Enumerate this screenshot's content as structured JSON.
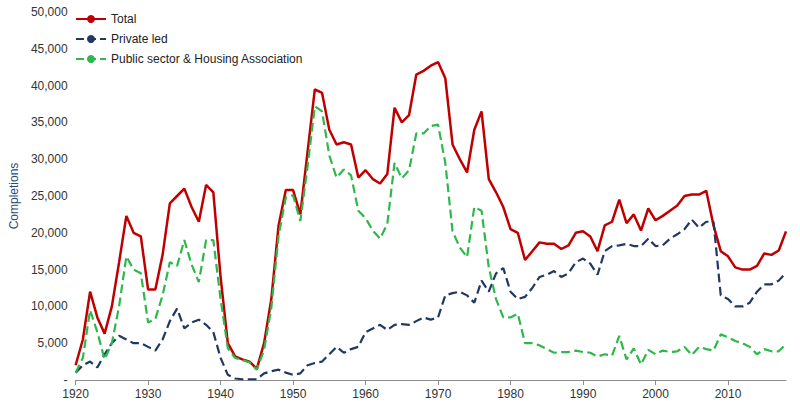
{
  "chart_data": {
    "type": "line",
    "y_label": "Completions",
    "x": [
      1920,
      1921,
      1922,
      1923,
      1924,
      1925,
      1926,
      1927,
      1928,
      1929,
      1930,
      1931,
      1932,
      1933,
      1934,
      1935,
      1936,
      1937,
      1938,
      1939,
      1940,
      1941,
      1942,
      1943,
      1944,
      1945,
      1946,
      1947,
      1948,
      1949,
      1950,
      1951,
      1952,
      1953,
      1954,
      1955,
      1956,
      1957,
      1958,
      1959,
      1960,
      1961,
      1962,
      1963,
      1964,
      1965,
      1966,
      1967,
      1968,
      1969,
      1970,
      1971,
      1972,
      1973,
      1974,
      1975,
      1976,
      1977,
      1978,
      1979,
      1980,
      1981,
      1982,
      1983,
      1984,
      1985,
      1986,
      1987,
      1988,
      1989,
      1990,
      1991,
      1992,
      1993,
      1994,
      1995,
      1996,
      1997,
      1998,
      1999,
      2000,
      2001,
      2002,
      2003,
      2004,
      2005,
      2006,
      2007,
      2008,
      2009,
      2010,
      2011,
      2012,
      2013,
      2014,
      2015,
      2016,
      2017,
      2018
    ],
    "series": [
      {
        "name": "Total",
        "color": "#c00000",
        "line_style": "solid",
        "values": [
          2000,
          5500,
          12000,
          8500,
          6300,
          10000,
          16000,
          22300,
          20000,
          19500,
          12300,
          12300,
          17000,
          24000,
          25000,
          26000,
          23500,
          21500,
          26500,
          25500,
          14000,
          5000,
          3200,
          2800,
          2500,
          1500,
          5000,
          11000,
          21000,
          25800,
          25800,
          22500,
          31000,
          39500,
          39000,
          34000,
          32000,
          32300,
          32000,
          27500,
          28500,
          27300,
          26700,
          28000,
          37000,
          35000,
          36000,
          41500,
          42000,
          42700,
          43200,
          41000,
          32000,
          30000,
          28200,
          34000,
          36500,
          27300,
          25500,
          23500,
          20500,
          20000,
          16300,
          17500,
          18700,
          18500,
          18500,
          17800,
          18300,
          20000,
          20200,
          19500,
          17500,
          21000,
          21500,
          24500,
          21300,
          22500,
          20300,
          23300,
          21700,
          22300,
          23000,
          23700,
          25000,
          25200,
          25200,
          25700,
          21000,
          17500,
          16800,
          15300,
          15000,
          15000,
          15500,
          17200,
          17000,
          17600,
          20200
        ]
      },
      {
        "name": "Private led",
        "color": "#1f3864",
        "line_style": "dashed",
        "values": [
          1000,
          2000,
          2500,
          1700,
          3500,
          5000,
          6000,
          5500,
          5000,
          5000,
          4500,
          4000,
          5500,
          8000,
          9700,
          7000,
          7800,
          8200,
          7500,
          6500,
          3000,
          700,
          200,
          100,
          100,
          100,
          900,
          1200,
          1400,
          1000,
          700,
          900,
          2000,
          2300,
          2500,
          3500,
          4500,
          3700,
          4200,
          4500,
          6500,
          7000,
          7500,
          6800,
          7500,
          7600,
          7500,
          8000,
          8500,
          8200,
          8500,
          11500,
          11800,
          12000,
          11500,
          10500,
          13500,
          12000,
          14500,
          15200,
          12000,
          11000,
          11300,
          12500,
          14000,
          14300,
          14800,
          14000,
          14500,
          16000,
          16500,
          15800,
          14300,
          17500,
          18200,
          18300,
          18500,
          18200,
          18200,
          19200,
          18200,
          18300,
          19200,
          19800,
          20500,
          21800,
          20700,
          21500,
          21500,
          11500,
          11000,
          10000,
          10000,
          10500,
          12000,
          13000,
          13000,
          13500,
          14600
        ]
      },
      {
        "name": "Public sector & Housing Association",
        "color": "#2db84b",
        "line_style": "dashed",
        "values": [
          1000,
          3000,
          9500,
          6500,
          2800,
          5000,
          10000,
          16800,
          15000,
          14500,
          7800,
          8300,
          11500,
          16000,
          15500,
          19000,
          15700,
          13300,
          19000,
          19000,
          11000,
          4300,
          3000,
          2700,
          2400,
          1400,
          4100,
          9800,
          19600,
          24800,
          25100,
          21600,
          29000,
          37200,
          36500,
          30500,
          27500,
          28600,
          27800,
          23000,
          22000,
          20300,
          19200,
          21200,
          29500,
          27400,
          28500,
          33500,
          33500,
          34500,
          34700,
          29500,
          20200,
          18000,
          16700,
          23500,
          23000,
          15300,
          11000,
          8500,
          8500,
          9000,
          5000,
          5000,
          4700,
          4200,
          3700,
          3800,
          3800,
          4000,
          3800,
          3700,
          3200,
          3500,
          3300,
          6000,
          2800,
          4300,
          2100,
          4100,
          3500,
          4000,
          3800,
          3900,
          4500,
          3400,
          4500,
          4200,
          4000,
          6200,
          5800,
          5300,
          5000,
          4500,
          3500,
          4200,
          3900,
          3900,
          4900
        ]
      }
    ],
    "xlim": [
      1920,
      2018
    ],
    "xticks": [
      1920,
      1930,
      1940,
      1950,
      1960,
      1970,
      1980,
      1990,
      2000,
      2010
    ],
    "ylim": [
      0,
      50000
    ],
    "yticks": [
      {
        "value": 0,
        "label": "-"
      },
      {
        "value": 5000,
        "label": "5,000"
      },
      {
        "value": 10000,
        "label": "10,000"
      },
      {
        "value": 15000,
        "label": "15,000"
      },
      {
        "value": 20000,
        "label": "20,000"
      },
      {
        "value": 25000,
        "label": "25,000"
      },
      {
        "value": 30000,
        "label": "30,000"
      },
      {
        "value": 35000,
        "label": "35,000"
      },
      {
        "value": 40000,
        "label": "40,000"
      },
      {
        "value": 45000,
        "label": "45,000"
      },
      {
        "value": 50000,
        "label": "50,000"
      }
    ],
    "grid": false,
    "legend": "top-left"
  }
}
